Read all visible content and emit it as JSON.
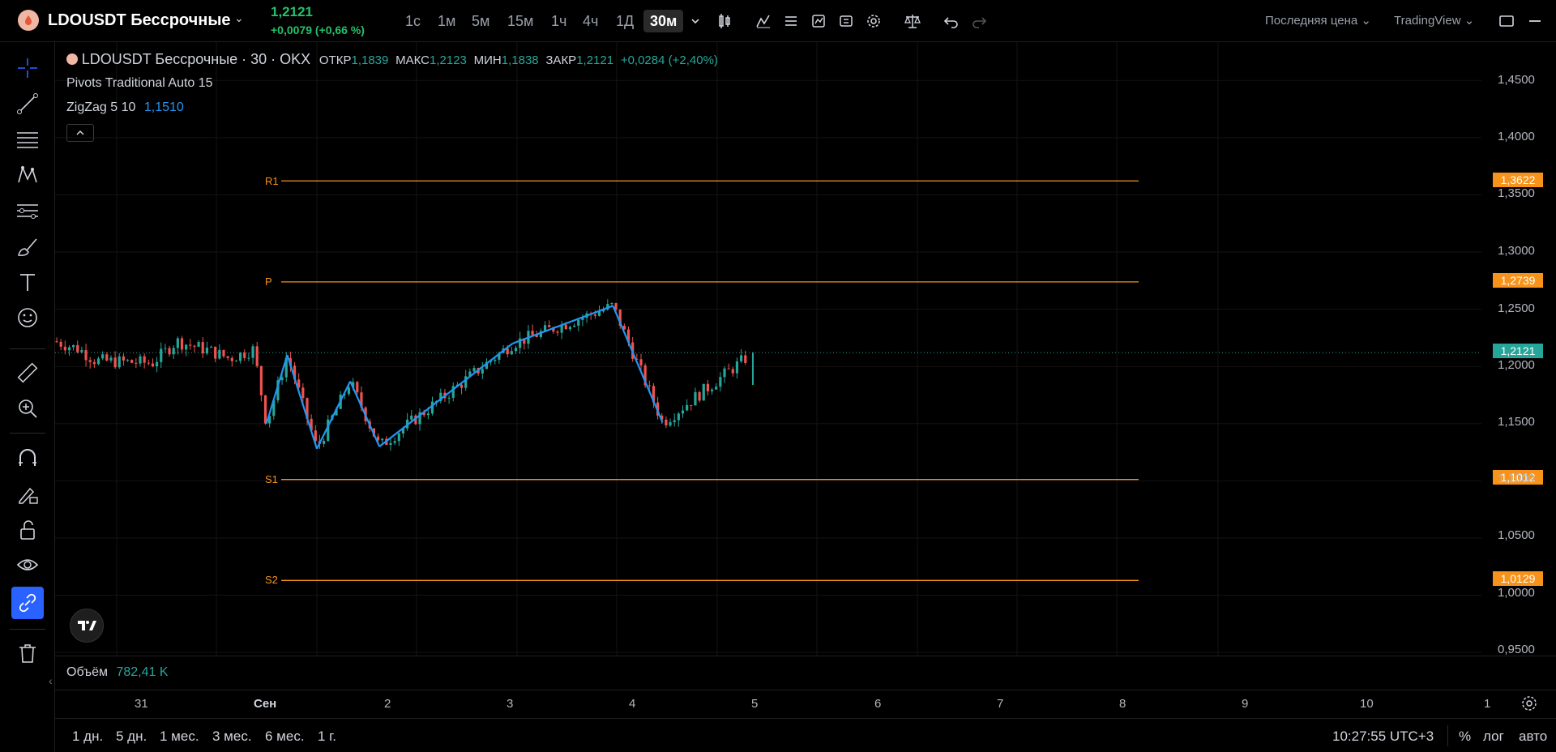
{
  "header": {
    "symbol": "LDOUSDT Бессрочные",
    "price": "1,2121",
    "change": "+0,0079 (+0,66 %)",
    "timeframes": [
      "1с",
      "1м",
      "5м",
      "15м",
      "1ч",
      "4ч",
      "1Д",
      "30м"
    ],
    "active_timeframe": "30м",
    "price_type": "Последняя цена",
    "chart_style": "TradingView"
  },
  "legend": {
    "title": "LDOUSDT Бессрочные · 30 · OKX",
    "open_label": "ОТКР",
    "open": "1,1839",
    "high_label": "МАКС",
    "high": "1,2123",
    "low_label": "МИН",
    "low": "1,1838",
    "close_label": "ЗАКР",
    "close": "1,2121",
    "change": "+0,0284 (+2,40%)",
    "pivots": "Pivots Traditional Auto 15",
    "zigzag": "ZigZag 5 10",
    "zigzag_value": "1,1510",
    "volume_label": "Объём",
    "volume_value": "782,41 K"
  },
  "pivots": [
    {
      "label": "R1",
      "value": "1,3622",
      "price": 1.3622
    },
    {
      "label": "P",
      "value": "1,2739",
      "price": 1.2739
    },
    {
      "label": "S1",
      "value": "1,1012",
      "price": 1.1012
    },
    {
      "label": "S2",
      "value": "1,0129",
      "price": 1.0129
    }
  ],
  "current_price_tag": "1,2121",
  "price_axis": [
    "1,4500",
    "1,4000",
    "1,3500",
    "1,3000",
    "1,2500",
    "1,2000",
    "1,1500",
    "1,1000",
    "1,0500",
    "1,0000",
    "0,9500"
  ],
  "time_axis": [
    "31",
    "Сен",
    "2",
    "3",
    "4",
    "5",
    "6",
    "7",
    "8",
    "9",
    "10",
    "1"
  ],
  "ranges": [
    "1 дн.",
    "5 дн.",
    "1 мес.",
    "3 мес.",
    "6 мес.",
    "1 г."
  ],
  "clock": "10:27:55 UTC+3",
  "percent_label": "%",
  "log_label": "лог",
  "auto_label": "авто",
  "colors": {
    "up": "#26a69a",
    "down": "#ef5350",
    "pivot": "#f7931a",
    "zigzag": "#2196f3",
    "accent": "#2962ff"
  },
  "chart_data": {
    "type": "line",
    "series": [
      {
        "name": "ZigZag 5 10",
        "x": [
          "Сен 1 12:00",
          "Сен 1 17:00",
          "Сен 2 00:00",
          "Сен 2 08:00",
          "Сен 2 15:00",
          "Сен 3 23:00",
          "Сен 4 23:00",
          "Сен 5 11:00"
        ],
        "values": [
          1.15,
          1.21,
          1.128,
          1.187,
          1.13,
          1.22,
          1.253,
          1.151
        ]
      }
    ],
    "last_close": 1.2121,
    "ylim": [
      0.95,
      1.45
    ]
  }
}
